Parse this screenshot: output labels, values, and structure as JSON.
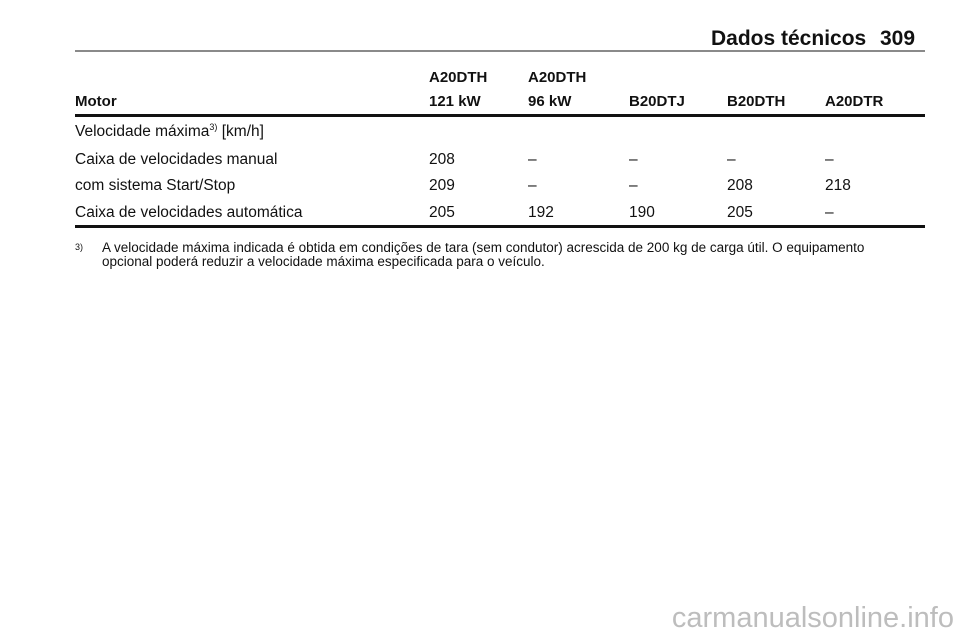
{
  "header": {
    "section": "Dados técnicos",
    "page": "309"
  },
  "table": {
    "columns": [
      {
        "line1": "",
        "line2": "Motor"
      },
      {
        "line1": "A20DTH",
        "line2": "121 kW"
      },
      {
        "line1": "A20DTH",
        "line2": "96 kW"
      },
      {
        "line1": "",
        "line2": "B20DTJ"
      },
      {
        "line1": "",
        "line2": "B20DTH"
      },
      {
        "line1": "",
        "line2": "A20DTR"
      }
    ],
    "group": {
      "label": "Velocidade máxima",
      "footnote_ref": "3)",
      "unit": "[km/h]"
    },
    "rows": [
      {
        "label": "Caixa de velocidades manual",
        "values": [
          "208",
          "–",
          "–",
          "–",
          "–"
        ]
      },
      {
        "label": "com sistema Start/Stop",
        "values": [
          "209",
          "–",
          "–",
          "208",
          "218"
        ]
      },
      {
        "label": "Caixa de velocidades automática",
        "values": [
          "205",
          "192",
          "190",
          "205",
          "–"
        ]
      }
    ]
  },
  "footnote": {
    "mark": "3)",
    "line1": "A velocidade máxima indicada é obtida em condições de tara (sem condutor) acrescida de 200 kg de carga útil. O equipamento",
    "line2": "opcional poderá reduzir a velocidade máxima especificada para o veículo."
  },
  "watermark": "carmanualsonline.info"
}
